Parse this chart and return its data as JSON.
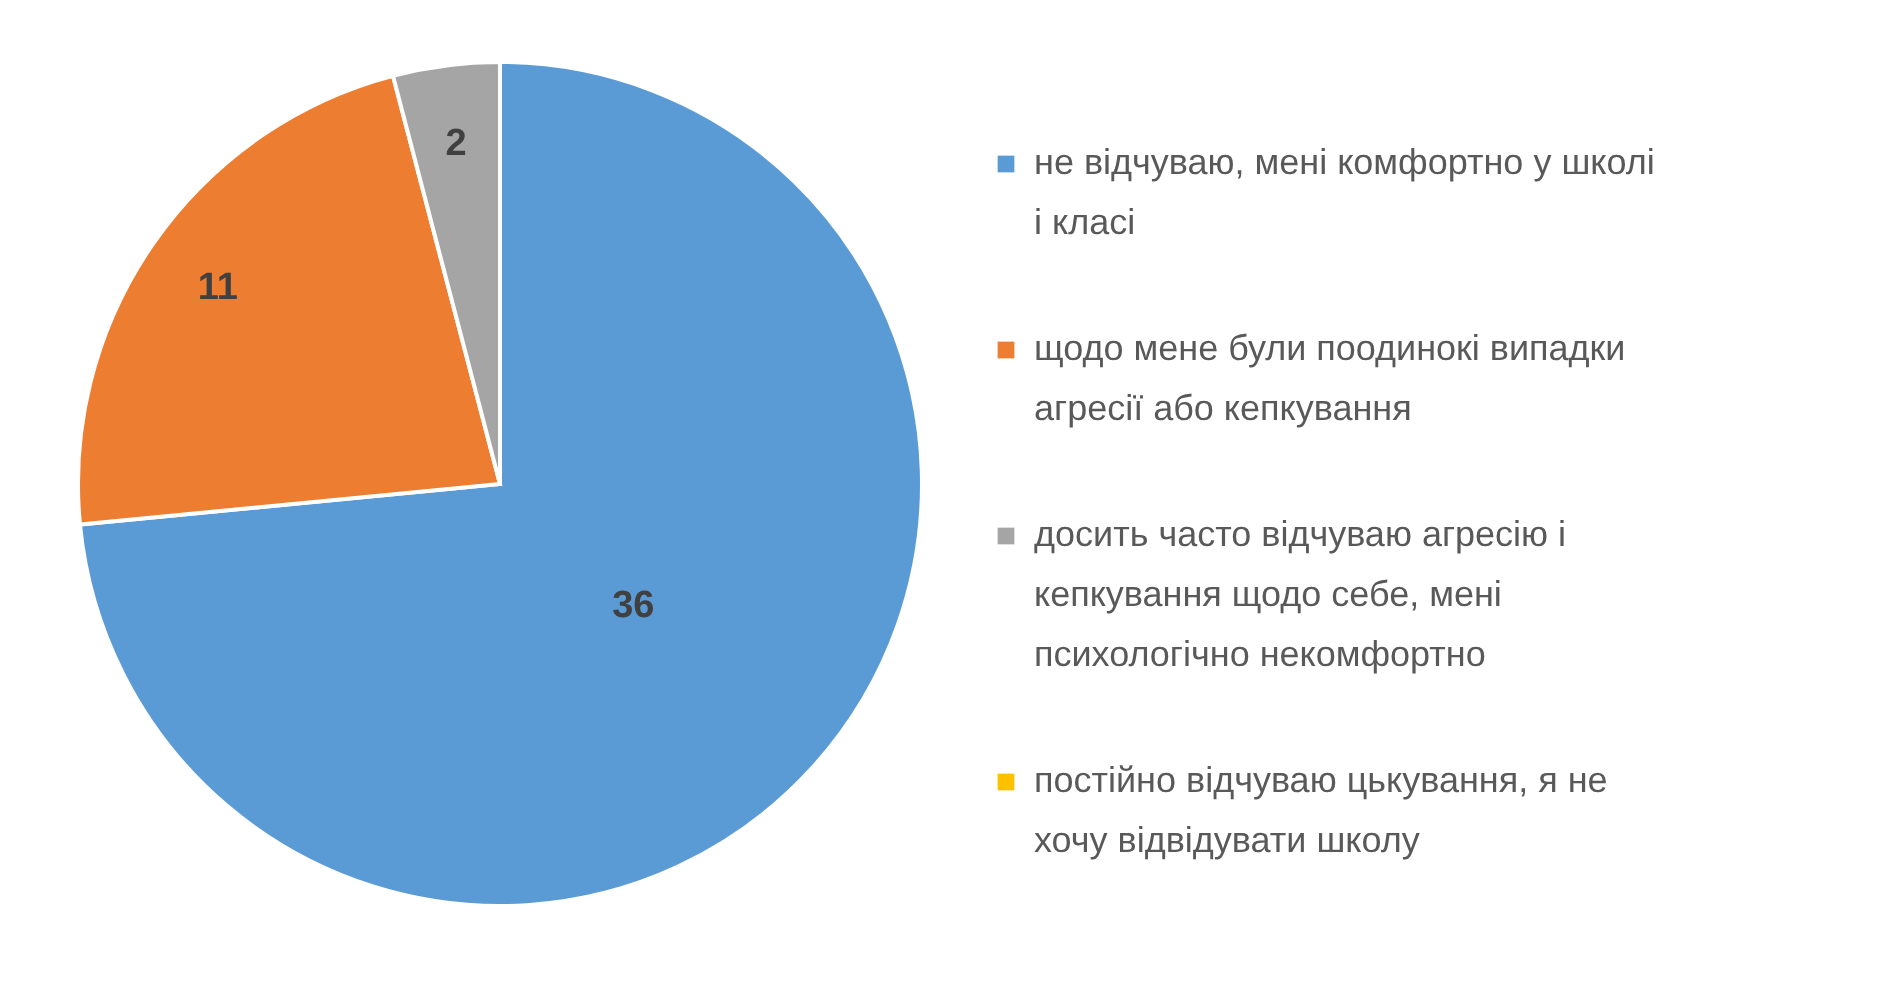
{
  "chart_data": {
    "type": "pie",
    "categories": [
      "не відчуваю, мені комфортно у школі і класі",
      "щодо мене були поодинокі випадки агресії або кепкування",
      "досить часто відчуваю агресію і кепкування щодо себе, мені психологічно некомфортно",
      "постійно відчуваю цькування, я не хочу відвідувати школу"
    ],
    "values": [
      36,
      11,
      2,
      0
    ],
    "colors": [
      "#5b9bd5",
      "#ed7d31",
      "#a5a5a5",
      "#ffc000"
    ],
    "value_labels": [
      "36",
      "11",
      "2",
      null
    ],
    "legend": "right"
  }
}
